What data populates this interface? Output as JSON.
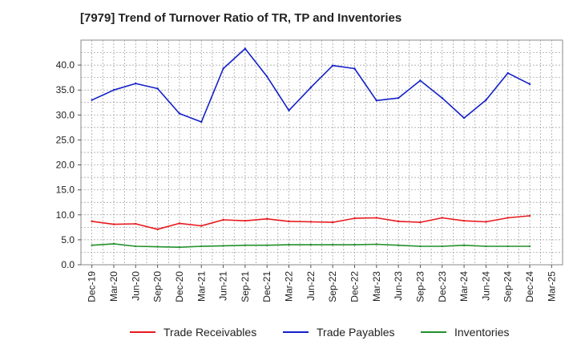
{
  "chart_data": {
    "type": "line",
    "title": "[7979]  Trend of Turnover Ratio of TR, TP and Inventories",
    "xlabel": "",
    "ylabel": "",
    "ylim": [
      0,
      45
    ],
    "yticks": [
      "0.0",
      "5.0",
      "10.0",
      "15.0",
      "20.0",
      "25.0",
      "30.0",
      "35.0",
      "40.0"
    ],
    "x_tick_labels": [
      "Dec-19",
      "Mar-20",
      "Jun-20",
      "Sep-20",
      "Dec-20",
      "Mar-21",
      "Jun-21",
      "Sep-21",
      "Dec-21",
      "Mar-22",
      "Jun-22",
      "Sep-22",
      "Dec-22",
      "Mar-23",
      "Jun-23",
      "Sep-23",
      "Dec-23",
      "Mar-24",
      "Jun-24",
      "Sep-24",
      "Dec-24",
      "Mar-25"
    ],
    "x": [
      "Dec-19",
      "Mar-20",
      "Jun-20",
      "Sep-20",
      "Dec-20",
      "Mar-21",
      "Jun-21",
      "Sep-21",
      "Dec-21",
      "Mar-22",
      "Jun-22",
      "Sep-22",
      "Dec-22",
      "Mar-23",
      "Jun-23",
      "Sep-23",
      "Dec-23",
      "Mar-24",
      "Jun-24",
      "Sep-24",
      "Dec-24"
    ],
    "grid": true,
    "legend_position": "bottom",
    "series": [
      {
        "name": "Trade Receivables",
        "color": "#e8191d",
        "values": [
          8.7,
          8.1,
          8.2,
          7.1,
          8.3,
          7.8,
          9.0,
          8.8,
          9.2,
          8.7,
          8.6,
          8.5,
          9.3,
          9.4,
          8.7,
          8.5,
          9.4,
          8.8,
          8.6,
          9.4,
          9.8
        ]
      },
      {
        "name": "Trade Payables",
        "color": "#1420c8",
        "values": [
          33.0,
          35.0,
          36.3,
          35.3,
          30.3,
          28.6,
          39.3,
          43.3,
          37.7,
          30.9,
          35.5,
          39.9,
          39.3,
          32.9,
          33.4,
          36.9,
          33.4,
          29.4,
          33.0,
          38.4,
          36.2
        ]
      },
      {
        "name": "Inventories",
        "color": "#22902a",
        "values": [
          3.9,
          4.2,
          3.7,
          3.6,
          3.5,
          3.7,
          3.8,
          3.9,
          3.9,
          4.0,
          4.0,
          4.0,
          4.0,
          4.1,
          3.9,
          3.7,
          3.7,
          3.9,
          3.7,
          3.7,
          3.7
        ]
      }
    ]
  }
}
